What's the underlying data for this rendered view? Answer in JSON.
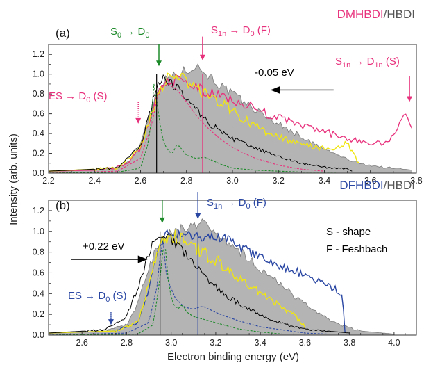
{
  "figure": {
    "ylabel": "Intensity (arb. units)",
    "xlabel": "Electron binding energy (eV)"
  },
  "colors": {
    "pink": "#e8317c",
    "blue": "#2946a3",
    "green": "#1d8a2a",
    "yellow": "#f0e614",
    "black": "#000000",
    "gray_fill": "#b4b4b4",
    "gray_edge": "#7a7a7a",
    "axis": "#333333"
  },
  "chart_data": [
    {
      "type": "area",
      "panel_label": "(a)",
      "title_parts": [
        {
          "text": "DMHBDI",
          "color": "pink"
        },
        {
          "text": "/HBDI",
          "color": "gray_text"
        }
      ],
      "xlim": [
        2.2,
        3.8
      ],
      "ylim": [
        0,
        1.3
      ],
      "x_ticks": [
        2.2,
        2.4,
        2.6,
        2.8,
        3.0,
        3.2,
        3.4,
        3.6,
        3.8
      ],
      "x_tick_labels": [
        "2.2",
        "2.4",
        "2.6",
        "2.8",
        "3.0",
        "3.2",
        "3.4",
        "3.6",
        "3.8"
      ],
      "y_ticks": [
        0,
        0.2,
        0.4,
        0.6,
        0.8,
        1.0,
        1.2
      ],
      "y_tick_labels": [
        "0.0",
        "0.2",
        "0.4",
        "0.6",
        "0.8",
        "1.0",
        "1.2"
      ],
      "series": [
        {
          "style": "gray-fill",
          "x": [
            2.2,
            2.4,
            2.5,
            2.55,
            2.6,
            2.64,
            2.68,
            2.72,
            2.76,
            2.8,
            2.84,
            2.88,
            2.92,
            2.96,
            3.0,
            3.05,
            3.1,
            3.15,
            3.2,
            3.25,
            3.3,
            3.35,
            3.4,
            3.45,
            3.5,
            3.55,
            3.6,
            3.65,
            3.7,
            3.75,
            3.78
          ],
          "y": [
            0.02,
            0.03,
            0.06,
            0.12,
            0.3,
            0.62,
            0.86,
            0.97,
            1.0,
            1.04,
            1.09,
            1.02,
            0.94,
            0.86,
            0.8,
            0.72,
            0.64,
            0.57,
            0.5,
            0.43,
            0.37,
            0.3,
            0.24,
            0.19,
            0.14,
            0.1,
            0.08,
            0.06,
            0.05,
            0.04,
            0.03
          ]
        },
        {
          "style": "pink",
          "x": [
            2.2,
            2.4,
            2.5,
            2.55,
            2.6,
            2.64,
            2.68,
            2.72,
            2.76,
            2.8,
            2.85,
            2.9,
            2.95,
            3.0,
            3.05,
            3.1,
            3.15,
            3.2,
            3.25,
            3.3,
            3.35,
            3.4,
            3.45,
            3.5,
            3.55,
            3.6,
            3.65,
            3.7,
            3.73,
            3.76,
            3.78
          ],
          "y": [
            0.02,
            0.03,
            0.06,
            0.11,
            0.25,
            0.55,
            0.82,
            0.95,
            0.94,
            0.9,
            0.86,
            0.8,
            0.78,
            0.74,
            0.7,
            0.65,
            0.6,
            0.56,
            0.52,
            0.48,
            0.45,
            0.42,
            0.38,
            0.35,
            0.33,
            0.3,
            0.3,
            0.36,
            0.55,
            0.62,
            0.45
          ]
        },
        {
          "style": "yellow",
          "x": [
            2.2,
            2.5,
            2.6,
            2.64,
            2.68,
            2.72,
            2.76,
            2.8,
            2.85,
            2.9,
            2.95,
            3.0,
            3.05,
            3.1,
            3.15,
            3.2,
            3.25,
            3.3,
            3.35,
            3.4,
            3.45,
            3.5,
            3.55
          ],
          "y": [
            0.02,
            0.05,
            0.25,
            0.55,
            0.84,
            0.96,
            0.97,
            0.93,
            0.85,
            0.78,
            0.72,
            0.63,
            0.55,
            0.47,
            0.41,
            0.36,
            0.32,
            0.29,
            0.27,
            0.25,
            0.24,
            0.3,
            0.1
          ]
        },
        {
          "style": "black",
          "x": [
            2.2,
            2.5,
            2.6,
            2.64,
            2.67,
            2.7,
            2.73,
            2.76,
            2.8,
            2.85,
            2.9,
            2.95,
            3.0,
            3.05,
            3.1,
            3.15,
            3.2,
            3.25,
            3.3,
            3.35,
            3.4,
            3.45,
            3.5,
            3.52
          ],
          "y": [
            0.02,
            0.05,
            0.28,
            0.6,
            0.88,
            0.95,
            0.92,
            0.86,
            0.76,
            0.62,
            0.5,
            0.42,
            0.35,
            0.3,
            0.25,
            0.21,
            0.17,
            0.13,
            0.1,
            0.08,
            0.06,
            0.05,
            0.04,
            0.02
          ]
        },
        {
          "style": "pink-dash",
          "x": [
            2.2,
            2.5,
            2.6,
            2.65,
            2.68,
            2.72,
            2.76,
            2.8,
            2.85,
            2.9,
            2.95,
            3.0,
            3.05,
            3.1,
            3.2,
            3.3,
            3.4
          ],
          "y": [
            0.0,
            0.02,
            0.15,
            0.5,
            0.85,
            0.9,
            0.84,
            0.72,
            0.56,
            0.44,
            0.34,
            0.26,
            0.2,
            0.15,
            0.08,
            0.04,
            0.02
          ]
        },
        {
          "style": "green-dash",
          "x": [
            2.2,
            2.5,
            2.6,
            2.64,
            2.66,
            2.68,
            2.7,
            2.72,
            2.74,
            2.76,
            2.78,
            2.8,
            2.84,
            2.88,
            2.92,
            2.96,
            3.0,
            3.1,
            3.2,
            3.3,
            3.45
          ],
          "y": [
            0.0,
            0.01,
            0.05,
            0.35,
            0.95,
            0.55,
            0.32,
            0.22,
            0.2,
            0.3,
            0.24,
            0.18,
            0.15,
            0.16,
            0.12,
            0.08,
            0.05,
            0.03,
            0.02,
            0.01,
            0.01
          ]
        }
      ],
      "vlines": [
        {
          "x": 2.67,
          "color": "black"
        },
        {
          "x": 2.87,
          "color": "pink"
        }
      ],
      "annotations": [
        {
          "parts": [
            {
              "t": "S"
            },
            {
              "t": "0",
              "sub": true
            },
            {
              "t": " → D"
            },
            {
              "t": "0",
              "sub": true
            }
          ],
          "color": "green",
          "arrow_x": 2.68,
          "arrow_style": "solid",
          "arrow_from": 1.3,
          "arrow_to": 1.08
        },
        {
          "parts": [
            {
              "t": "S"
            },
            {
              "t": "1n",
              "sub": true
            },
            {
              "t": " → D"
            },
            {
              "t": "0",
              "sub": true
            },
            {
              "t": " (F)"
            }
          ],
          "color": "pink",
          "arrow_x": 2.87,
          "arrow_style": "solid",
          "arrow_from": 1.38,
          "arrow_to": 1.14
        },
        {
          "parts": [
            {
              "t": "ES → D"
            },
            {
              "t": "0",
              "sub": true
            },
            {
              "t": " (S)"
            }
          ],
          "color": "pink",
          "arrow_x": 2.59,
          "arrow_style": "dotted",
          "arrow_from": 0.72,
          "arrow_to": 0.5
        },
        {
          "parts": [
            {
              "t": "S"
            },
            {
              "t": "1n",
              "sub": true
            },
            {
              "t": " → D"
            },
            {
              "t": "1n",
              "sub": true
            },
            {
              "t": " (S)"
            }
          ],
          "color": "pink",
          "arrow_x": 3.77,
          "arrow_style": "solid",
          "arrow_from": 0.98,
          "arrow_to": 0.72
        },
        {
          "parts": [
            {
              "t": "-0.05 eV"
            }
          ],
          "color": "black",
          "arrow_style": "horizontal",
          "arrow_x_from": 3.44,
          "arrow_x_to": 3.17,
          "arrow_y": 0.84
        }
      ]
    },
    {
      "type": "area",
      "panel_label": "(b)",
      "title_parts": [
        {
          "text": "DFHBDI",
          "color": "blue"
        },
        {
          "text": "/HBDI",
          "color": "gray_text"
        }
      ],
      "xlim": [
        2.45,
        4.1
      ],
      "ylim": [
        0,
        1.3
      ],
      "x_ticks": [
        2.6,
        2.8,
        3.0,
        3.2,
        3.4,
        3.6,
        3.8,
        4.0
      ],
      "x_tick_labels": [
        "2.6",
        "2.8",
        "3.0",
        "3.2",
        "3.4",
        "3.6",
        "3.8",
        "4.0"
      ],
      "y_ticks": [
        0,
        0.2,
        0.4,
        0.6,
        0.8,
        1.0,
        1.2
      ],
      "y_tick_labels": [
        "0.0",
        "0.2",
        "0.4",
        "0.6",
        "0.8",
        "1.0",
        "1.2"
      ],
      "legend_lines": [
        "S - shape",
        "F - Feshbach"
      ],
      "series": [
        {
          "style": "gray-fill",
          "x": [
            2.45,
            2.7,
            2.8,
            2.85,
            2.9,
            2.94,
            2.98,
            3.02,
            3.06,
            3.1,
            3.14,
            3.18,
            3.22,
            3.26,
            3.3,
            3.35,
            3.4,
            3.45,
            3.5,
            3.55,
            3.6,
            3.65,
            3.7,
            3.75,
            3.8,
            3.85,
            3.9,
            3.95,
            4.0
          ],
          "y": [
            0.02,
            0.04,
            0.1,
            0.3,
            0.65,
            0.88,
            0.96,
            1.0,
            1.03,
            1.06,
            1.1,
            1.02,
            0.96,
            0.88,
            0.82,
            0.74,
            0.64,
            0.56,
            0.47,
            0.38,
            0.3,
            0.22,
            0.16,
            0.11,
            0.07,
            0.04,
            0.03,
            0.02,
            0.01
          ]
        },
        {
          "style": "blue",
          "x": [
            2.45,
            2.75,
            2.85,
            2.9,
            2.94,
            2.98,
            3.02,
            3.06,
            3.1,
            3.15,
            3.2,
            3.25,
            3.3,
            3.35,
            3.4,
            3.45,
            3.5,
            3.55,
            3.6,
            3.65,
            3.7,
            3.74,
            3.77,
            3.78
          ],
          "y": [
            0.02,
            0.04,
            0.12,
            0.45,
            0.85,
            0.97,
            0.98,
            0.96,
            0.94,
            0.95,
            0.96,
            0.92,
            0.86,
            0.8,
            0.74,
            0.7,
            0.66,
            0.62,
            0.58,
            0.53,
            0.48,
            0.44,
            0.35,
            0.02
          ]
        },
        {
          "style": "yellow",
          "x": [
            2.45,
            2.75,
            2.85,
            2.9,
            2.94,
            2.98,
            3.02,
            3.06,
            3.1,
            3.15,
            3.2,
            3.25,
            3.3,
            3.35,
            3.4,
            3.45,
            3.5,
            3.55,
            3.6
          ],
          "y": [
            0.02,
            0.04,
            0.12,
            0.5,
            0.85,
            0.95,
            0.95,
            0.92,
            0.86,
            0.79,
            0.72,
            0.63,
            0.55,
            0.48,
            0.4,
            0.34,
            0.26,
            0.2,
            0.08
          ]
        },
        {
          "style": "black",
          "x": [
            2.45,
            2.7,
            2.8,
            2.85,
            2.9,
            2.94,
            2.97,
            3.0,
            3.04,
            3.08,
            3.12,
            3.16,
            3.2,
            3.25,
            3.3,
            3.35,
            3.4,
            3.45,
            3.5,
            3.55,
            3.6,
            3.7,
            3.8
          ],
          "y": [
            0.02,
            0.05,
            0.18,
            0.45,
            0.8,
            0.95,
            0.96,
            0.92,
            0.84,
            0.74,
            0.64,
            0.55,
            0.47,
            0.38,
            0.31,
            0.25,
            0.2,
            0.15,
            0.11,
            0.08,
            0.06,
            0.04,
            0.02
          ]
        },
        {
          "style": "blue-dash",
          "x": [
            2.45,
            2.8,
            2.9,
            2.94,
            2.96,
            2.98,
            3.02,
            3.06,
            3.1,
            3.14,
            3.18,
            3.22,
            3.3,
            3.4,
            3.5,
            3.6,
            3.7
          ],
          "y": [
            0.0,
            0.02,
            0.12,
            0.5,
            1.0,
            0.55,
            0.35,
            0.27,
            0.25,
            0.28,
            0.24,
            0.2,
            0.14,
            0.08,
            0.05,
            0.02,
            0.01
          ]
        },
        {
          "style": "green-dash",
          "x": [
            2.45,
            2.85,
            2.92,
            2.95,
            2.97,
            2.99,
            3.01,
            3.03,
            3.05,
            3.07,
            3.1,
            3.15,
            3.2,
            3.25,
            3.3,
            3.4,
            3.5
          ],
          "y": [
            0.0,
            0.01,
            0.1,
            0.55,
            0.95,
            0.45,
            0.3,
            0.25,
            0.3,
            0.22,
            0.18,
            0.15,
            0.12,
            0.09,
            0.06,
            0.03,
            0.01
          ]
        }
      ],
      "vlines": [
        {
          "x": 2.95,
          "color": "black"
        },
        {
          "x": 3.12,
          "color": "blue"
        }
      ],
      "annotations": [
        {
          "parts": [],
          "color": "green",
          "arrow_x": 2.96,
          "arrow_style": "solid",
          "arrow_from": 1.3,
          "arrow_to": 1.08
        },
        {
          "parts": [
            {
              "t": "S"
            },
            {
              "t": "1n",
              "sub": true
            },
            {
              "t": " → D"
            },
            {
              "t": "0",
              "sub": true
            },
            {
              "t": " (F)"
            }
          ],
          "color": "blue",
          "arrow_x": 3.12,
          "arrow_style": "solid",
          "arrow_from": 1.38,
          "arrow_to": 1.12
        },
        {
          "parts": [
            {
              "t": "ES → D"
            },
            {
              "t": "0",
              "sub": true
            },
            {
              "t": " (S)"
            }
          ],
          "color": "blue",
          "arrow_x": 2.73,
          "arrow_style": "dotted",
          "arrow_from": 0.22,
          "arrow_to": 0.1
        },
        {
          "parts": [
            {
              "t": "+0.22 eV"
            }
          ],
          "color": "black",
          "arrow_style": "horizontal",
          "arrow_x_from": 2.55,
          "arrow_x_to": 2.89,
          "arrow_y": 0.73
        }
      ]
    }
  ]
}
